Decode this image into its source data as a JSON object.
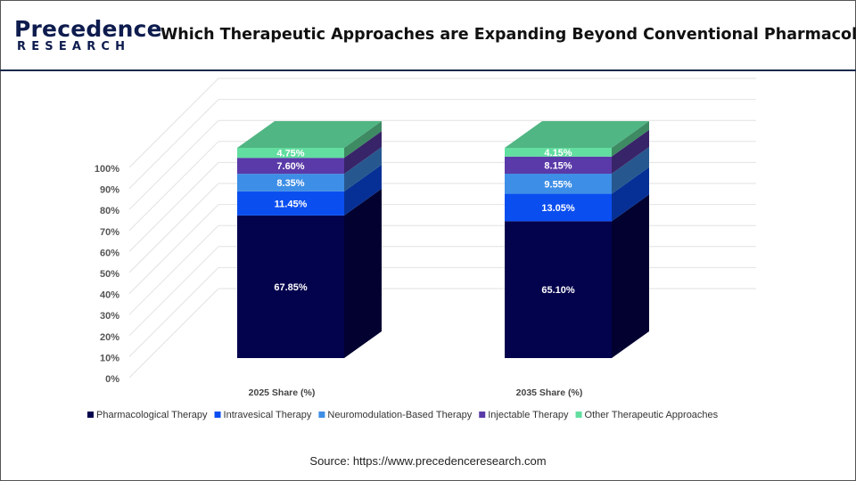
{
  "header": {
    "logo_top": "Precedence",
    "logo_bottom": "RESEARCH",
    "title": "Which Therapeutic Approaches are Expanding Beyond Conventional Pharmacology"
  },
  "source": "Source: https://www.precedenceresearch.com",
  "colors": {
    "Pharmacological Therapy": "#03024d",
    "Intravesical Therapy": "#0a4ef0",
    "Neuromodulation-Based Therapy": "#3d8ee6",
    "Injectable Therapy": "#5a3aa8",
    "Other Therapeutic Approaches": "#62dea0"
  },
  "chart_data": {
    "type": "bar",
    "stacked": true,
    "style": "3d",
    "categories": [
      "2025 Share (%)",
      "2035 Share (%)"
    ],
    "series": [
      {
        "name": "Pharmacological Therapy",
        "values": [
          67.85,
          65.1
        ],
        "labels": [
          "67.85%",
          "65.10%"
        ]
      },
      {
        "name": "Intravesical Therapy",
        "values": [
          11.45,
          13.05
        ],
        "labels": [
          "11.45%",
          "13.05%"
        ]
      },
      {
        "name": "Neuromodulation-Based Therapy",
        "values": [
          8.35,
          9.55
        ],
        "labels": [
          "8.35%",
          "9.55%"
        ]
      },
      {
        "name": "Injectable Therapy",
        "values": [
          7.6,
          8.15
        ],
        "labels": [
          "7.60%",
          "8.15%"
        ]
      },
      {
        "name": "Other Therapeutic Approaches",
        "values": [
          4.75,
          4.15
        ],
        "labels": [
          "4.75%",
          "4.15%"
        ]
      }
    ],
    "yticks": [
      "0%",
      "10%",
      "20%",
      "30%",
      "40%",
      "50%",
      "60%",
      "70%",
      "80%",
      "90%",
      "100%"
    ],
    "ylim": [
      0,
      100
    ],
    "grid": true,
    "legend_position": "bottom"
  }
}
